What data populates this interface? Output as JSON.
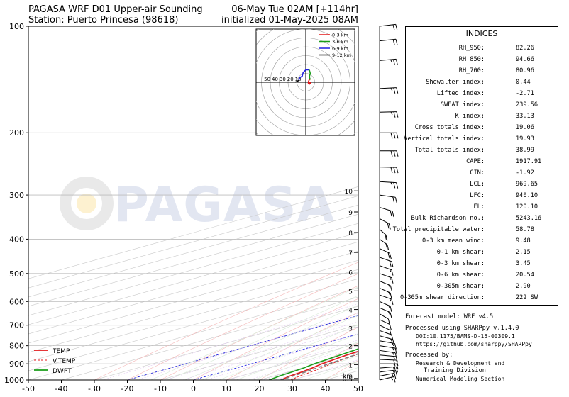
{
  "header": {
    "title_line1": "PAGASA WRF D01 Upper-air Sounding",
    "title_line2": "Station: Puerto Princesa (98618)",
    "valid_line1": "06-May Tue 02AM [+114hr]",
    "valid_line2": "initialized 01-May-2025 08AM"
  },
  "watermark": {
    "text": "PAGASA"
  },
  "chart_data": {
    "type": "line",
    "kind": "skew-t log-p sounding",
    "x_axis": {
      "label": "",
      "range": [
        -50,
        50
      ],
      "ticks": [
        -50,
        -40,
        -30,
        -20,
        -10,
        0,
        10,
        20,
        30,
        40,
        50
      ]
    },
    "y_axis": {
      "label": "",
      "scale": "log",
      "range": [
        1000,
        100
      ],
      "ticks": [
        100,
        200,
        300,
        400,
        500,
        600,
        700,
        800,
        900,
        1000
      ]
    },
    "height_km_ticks": [
      {
        "label": "0.5",
        "p": 990
      },
      {
        "label": "1",
        "p": 905
      },
      {
        "label": "2",
        "p": 800
      },
      {
        "label": "3",
        "p": 712
      },
      {
        "label": "4",
        "p": 632
      },
      {
        "label": "5",
        "p": 560
      },
      {
        "label": "6",
        "p": 495
      },
      {
        "label": "7",
        "p": 436
      },
      {
        "label": "8",
        "p": 383
      },
      {
        "label": "9",
        "p": 335
      },
      {
        "label": "10",
        "p": 292
      }
    ],
    "height_unit": "km",
    "legend": {
      "position": "bottom-left",
      "entries": [
        "TEMP",
        "V.TEMP",
        "DWPT"
      ]
    },
    "series": [
      {
        "name": "TEMP",
        "color": "#e31a1c",
        "dash": "solid",
        "points": [
          [
            1000,
            26.5
          ],
          [
            975,
            25.0
          ],
          [
            950,
            24.2
          ],
          [
            925,
            23.0
          ],
          [
            900,
            21.4
          ],
          [
            850,
            19.4
          ],
          [
            800,
            18.2
          ],
          [
            750,
            17.0
          ],
          [
            700,
            15.4
          ],
          [
            650,
            13.6
          ],
          [
            600,
            11.6
          ],
          [
            550,
            9.4
          ],
          [
            500,
            6.8
          ],
          [
            450,
            3.4
          ],
          [
            400,
            -2.0
          ],
          [
            350,
            -7.8
          ],
          [
            300,
            -13.6
          ],
          [
            250,
            -21.4
          ],
          [
            200,
            -30.6
          ],
          [
            175,
            -37.0
          ],
          [
            150,
            -44.0
          ],
          [
            125,
            -52.0
          ],
          [
            110,
            -56.5
          ],
          [
            100,
            -58.0
          ]
        ]
      },
      {
        "name": "V.TEMP",
        "color": "#e31a1c",
        "dash": "dashed",
        "points": [
          [
            1000,
            29.5
          ],
          [
            975,
            28.0
          ],
          [
            950,
            27.0
          ],
          [
            925,
            25.8
          ],
          [
            900,
            24.2
          ],
          [
            850,
            22.0
          ],
          [
            800,
            20.4
          ],
          [
            750,
            19.0
          ],
          [
            700,
            17.2
          ],
          [
            650,
            15.0
          ],
          [
            600,
            12.8
          ],
          [
            550,
            10.2
          ],
          [
            500,
            7.4
          ],
          [
            450,
            3.8
          ],
          [
            400,
            -1.8
          ],
          [
            350,
            -7.7
          ],
          [
            300,
            -13.5
          ],
          [
            250,
            -21.4
          ],
          [
            200,
            -30.6
          ],
          [
            150,
            -44.0
          ],
          [
            100,
            -58.0
          ]
        ]
      },
      {
        "name": "DWPT",
        "color": "#1a9e1a",
        "dash": "solid",
        "points": [
          [
            1000,
            23.0
          ],
          [
            975,
            21.8
          ],
          [
            950,
            21.2
          ],
          [
            925,
            20.4
          ],
          [
            900,
            19.0
          ],
          [
            850,
            17.4
          ],
          [
            800,
            15.6
          ],
          [
            750,
            13.2
          ],
          [
            700,
            11.6
          ],
          [
            650,
            10.4
          ],
          [
            600,
            9.0
          ],
          [
            550,
            6.2
          ],
          [
            500,
            3.0
          ],
          [
            450,
            -6.0
          ],
          [
            400,
            -12.0
          ],
          [
            375,
            -12.5
          ],
          [
            350,
            -15.0
          ],
          [
            320,
            -20.0
          ],
          [
            300,
            -23.0
          ],
          [
            270,
            -26.5
          ],
          [
            250,
            -31.5
          ],
          [
            225,
            -37.0
          ],
          [
            210,
            -43.0
          ],
          [
            200,
            -44.0
          ],
          [
            185,
            -48.5
          ],
          [
            160,
            -58.0
          ],
          [
            150,
            -59.0
          ],
          [
            140,
            -60.5
          ],
          [
            125,
            -64.0
          ],
          [
            110,
            -67.0
          ],
          [
            100,
            -67.5
          ]
        ]
      },
      {
        "name": "parcel",
        "color": "#7f7f7f",
        "dash": "dashed",
        "points": [
          [
            1000,
            26.5
          ],
          [
            960,
            25.5
          ],
          [
            940,
            24.9
          ],
          [
            900,
            23.5
          ],
          [
            850,
            21.8
          ],
          [
            800,
            19.9
          ],
          [
            750,
            17.9
          ],
          [
            700,
            15.7
          ],
          [
            650,
            13.2
          ],
          [
            600,
            10.5
          ],
          [
            550,
            7.4
          ],
          [
            500,
            3.8
          ],
          [
            450,
            -0.4
          ],
          [
            400,
            -5.5
          ],
          [
            350,
            -11.6
          ],
          [
            300,
            -19.0
          ],
          [
            250,
            -28.0
          ],
          [
            200,
            -39.5
          ],
          [
            150,
            -55.0
          ],
          [
            120,
            -67.5
          ],
          [
            100,
            -76.0
          ]
        ]
      }
    ],
    "wind_barbs": [
      {
        "p": 1000,
        "u": -6,
        "v": 4
      },
      {
        "p": 975,
        "u": -7,
        "v": 4
      },
      {
        "p": 950,
        "u": -8,
        "v": 3
      },
      {
        "p": 925,
        "u": -9,
        "v": 2
      },
      {
        "p": 900,
        "u": -9,
        "v": 0
      },
      {
        "p": 875,
        "u": -9,
        "v": -1
      },
      {
        "p": 850,
        "u": -8,
        "v": -2
      },
      {
        "p": 825,
        "u": -7,
        "v": -3
      },
      {
        "p": 800,
        "u": -7,
        "v": -3
      },
      {
        "p": 775,
        "u": -6,
        "v": -3
      },
      {
        "p": 750,
        "u": -5,
        "v": -4
      },
      {
        "p": 725,
        "u": -4,
        "v": -4
      },
      {
        "p": 700,
        "u": -3,
        "v": -4
      },
      {
        "p": 675,
        "u": -3,
        "v": -4
      },
      {
        "p": 650,
        "u": -3,
        "v": -5
      },
      {
        "p": 625,
        "u": -4,
        "v": -5
      },
      {
        "p": 600,
        "u": -4,
        "v": -5
      },
      {
        "p": 575,
        "u": -5,
        "v": -5
      },
      {
        "p": 550,
        "u": -4,
        "v": -5
      },
      {
        "p": 525,
        "u": -5,
        "v": -6
      },
      {
        "p": 500,
        "u": -6,
        "v": -6
      },
      {
        "p": 475,
        "u": -6,
        "v": -6
      },
      {
        "p": 450,
        "u": -7,
        "v": -7
      },
      {
        "p": 425,
        "u": -6,
        "v": -8
      },
      {
        "p": 400,
        "u": -5,
        "v": -10
      },
      {
        "p": 375,
        "u": -4,
        "v": -10
      },
      {
        "p": 350,
        "u": -6,
        "v": -9
      },
      {
        "p": 325,
        "u": -8,
        "v": -7
      },
      {
        "p": 300,
        "u": -10,
        "v": -4
      },
      {
        "p": 275,
        "u": -12,
        "v": -2
      },
      {
        "p": 250,
        "u": -14,
        "v": -1
      },
      {
        "p": 225,
        "u": -14,
        "v": 0
      },
      {
        "p": 200,
        "u": -14,
        "v": 0
      },
      {
        "p": 175,
        "u": -13,
        "v": 1
      },
      {
        "p": 150,
        "u": -13,
        "v": 2
      },
      {
        "p": 125,
        "u": -12,
        "v": 3
      },
      {
        "p": 110,
        "u": -10,
        "v": 3
      },
      {
        "p": 100,
        "u": -9,
        "v": 3
      }
    ],
    "hodograph": {
      "range_labels": [
        "50",
        "40",
        "30",
        "20",
        "10"
      ],
      "legend": [
        {
          "label": "0-3 km",
          "color": "#e31a1c"
        },
        {
          "label": "3-6 km",
          "color": "#1a9e1a"
        },
        {
          "label": "6-9 km",
          "color": "#1f1fe0"
        },
        {
          "label": "9-12 km",
          "color": "#000000"
        }
      ],
      "segments": [
        {
          "color": "#e31a1c",
          "points": [
            [
              4,
              -1
            ],
            [
              3,
              1
            ],
            [
              4,
              3
            ],
            [
              5,
              3
            ]
          ]
        },
        {
          "color": "#1a9e1a",
          "points": [
            [
              5,
              3
            ],
            [
              4,
              6
            ],
            [
              5,
              10
            ],
            [
              4,
              14
            ]
          ]
        },
        {
          "color": "#1f1fe0",
          "points": [
            [
              4,
              14
            ],
            [
              0,
              14
            ],
            [
              -3,
              11
            ],
            [
              -4,
              7
            ],
            [
              -7,
              5
            ],
            [
              -8,
              2
            ]
          ]
        },
        {
          "color": "#000000",
          "points": [
            [
              -8,
              2
            ],
            [
              -10,
              1
            ],
            [
              -12,
              0
            ]
          ]
        }
      ]
    }
  },
  "indices": {
    "title": "INDICES",
    "rows": [
      {
        "label": "RH_950:",
        "value": "82.26"
      },
      {
        "label": "RH_850:",
        "value": "94.66"
      },
      {
        "label": "RH_700:",
        "value": "80.96"
      },
      {
        "label": "Showalter index:",
        "value": "0.44"
      },
      {
        "label": "Lifted index:",
        "value": "-2.71"
      },
      {
        "label": "SWEAT index:",
        "value": "239.56"
      },
      {
        "label": "K index:",
        "value": "33.13"
      },
      {
        "label": "Cross totals index:",
        "value": "19.06"
      },
      {
        "label": "Vertical totals index:",
        "value": "19.93"
      },
      {
        "label": "Total totals index:",
        "value": "38.99"
      },
      {
        "label": "CAPE:",
        "value": "1917.91"
      },
      {
        "label": "CIN:",
        "value": "-1.92"
      },
      {
        "label": "LCL:",
        "value": "969.65"
      },
      {
        "label": "LFC:",
        "value": "940.10"
      },
      {
        "label": "EL:",
        "value": "120.10"
      },
      {
        "label": "Bulk Richardson no.:",
        "value": "5243.16"
      },
      {
        "label": "Total precipitable water:",
        "value": "58.78"
      },
      {
        "label": "0-3 km mean wind:",
        "value": "9.48"
      },
      {
        "label": "0-1 km shear:",
        "value": "2.15"
      },
      {
        "label": "0-3 km shear:",
        "value": "3.45"
      },
      {
        "label": "0-6 km shear:",
        "value": "20.54"
      },
      {
        "label": "0-305m shear:",
        "value": "2.90"
      },
      {
        "label": "0-305m shear direction:",
        "value": "222 SW"
      }
    ]
  },
  "footer": {
    "model": "Forecast model: WRF v4.5",
    "processed": "Processed using SHARPpy v.1.4.0",
    "doi": "DOI:10.1175/BAMS-D-15-00309.1",
    "url": "https://github.com/sharppy/SHARPpy",
    "processed_by": "Processed by:",
    "org1": "Research & Development and",
    "org2": "Training Division",
    "org3": "Numerical Modeling Section"
  }
}
